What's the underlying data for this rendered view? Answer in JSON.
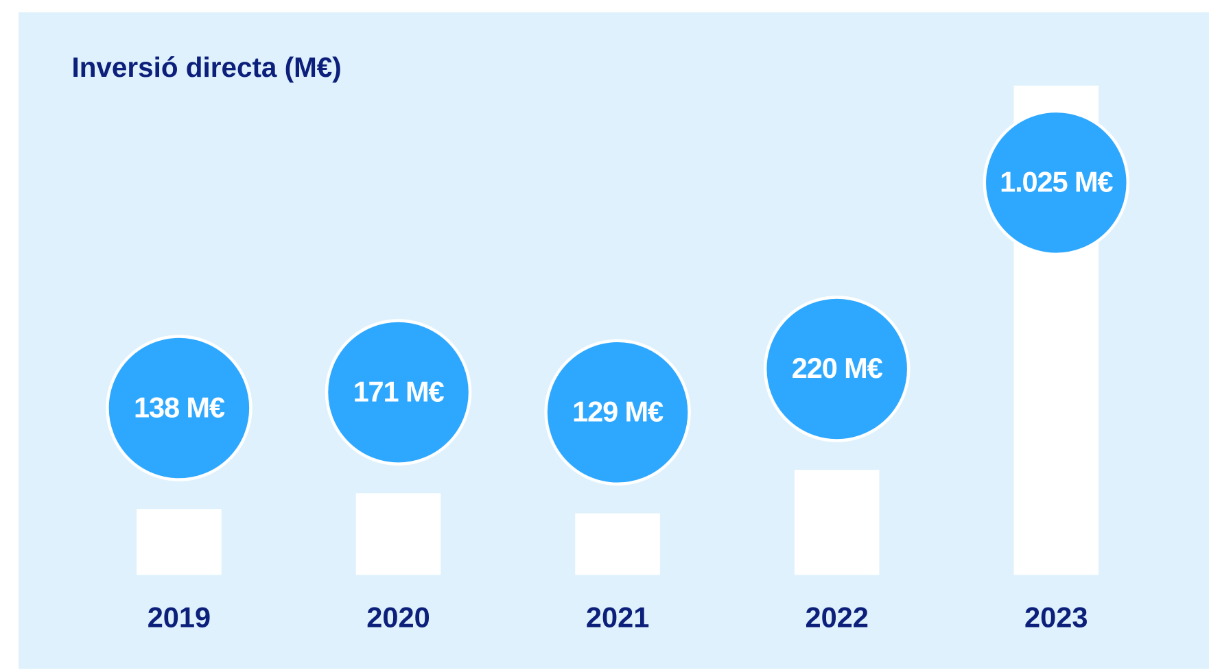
{
  "chart_data": {
    "type": "bar",
    "title": "Inversió directa (M€)",
    "categories": [
      "2019",
      "2020",
      "2021",
      "2022",
      "2023"
    ],
    "values": [
      138,
      171,
      129,
      220,
      1025
    ],
    "value_labels": [
      "138 M€",
      "171 M€",
      "129 M€",
      "220 M€",
      "1.025 M€"
    ],
    "color": "#ffffff",
    "label_color": "#2ea8ff",
    "ylim": [
      0,
      1025
    ]
  }
}
